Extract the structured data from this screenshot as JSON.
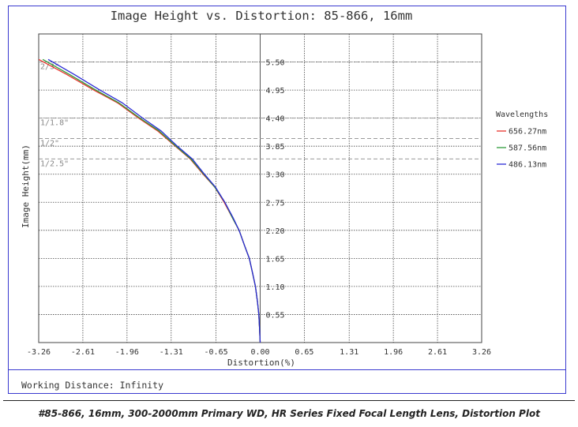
{
  "chart_data": {
    "type": "line",
    "title": "Image Height vs. Distortion: 85-866, 16mm",
    "xlabel": "Distortion(%)",
    "ylabel": "Image Height(mm)",
    "xlim": [
      -3.26,
      3.26
    ],
    "ylim": [
      0,
      6.05
    ],
    "x_ticks": [
      "-3.26",
      "-2.61",
      "-1.96",
      "-1.31",
      "-0.65",
      "0.00",
      "0.65",
      "1.31",
      "1.96",
      "2.61",
      "3.26"
    ],
    "y_ticks": [
      "0.55",
      "1.10",
      "1.65",
      "2.20",
      "2.75",
      "3.30",
      "3.85",
      "4.40",
      "4.95",
      "5.50"
    ],
    "grid": true,
    "legend_title": "Wavelengths",
    "legend_position": "right",
    "series": [
      {
        "name": "656.27nm",
        "color": "#e8332b",
        "points": [
          [
            0,
            0
          ],
          [
            -0.01,
            0.3
          ],
          [
            -0.02,
            0.55
          ],
          [
            -0.04,
            0.8
          ],
          [
            -0.07,
            1.1
          ],
          [
            -0.11,
            1.35
          ],
          [
            -0.16,
            1.65
          ],
          [
            -0.23,
            1.9
          ],
          [
            -0.31,
            2.2
          ],
          [
            -0.41,
            2.45
          ],
          [
            -0.53,
            2.75
          ],
          [
            -0.67,
            3.05
          ],
          [
            -0.84,
            3.3
          ],
          [
            -1.03,
            3.6
          ],
          [
            -1.25,
            3.85
          ],
          [
            -1.51,
            4.15
          ],
          [
            -1.79,
            4.4
          ],
          [
            -2.1,
            4.7
          ],
          [
            -2.45,
            4.95
          ],
          [
            -2.84,
            5.25
          ],
          [
            -3.26,
            5.55
          ]
        ]
      },
      {
        "name": "587.56nm",
        "color": "#2e9a3a",
        "points": [
          [
            0,
            0
          ],
          [
            -0.01,
            0.3
          ],
          [
            -0.02,
            0.55
          ],
          [
            -0.04,
            0.8
          ],
          [
            -0.07,
            1.1
          ],
          [
            -0.11,
            1.35
          ],
          [
            -0.16,
            1.65
          ],
          [
            -0.23,
            1.9
          ],
          [
            -0.31,
            2.2
          ],
          [
            -0.41,
            2.45
          ],
          [
            -0.52,
            2.75
          ],
          [
            -0.67,
            3.05
          ],
          [
            -0.83,
            3.3
          ],
          [
            -1.02,
            3.6
          ],
          [
            -1.24,
            3.85
          ],
          [
            -1.49,
            4.15
          ],
          [
            -1.77,
            4.4
          ],
          [
            -2.08,
            4.7
          ],
          [
            -2.42,
            4.95
          ],
          [
            -2.8,
            5.25
          ],
          [
            -3.2,
            5.55
          ]
        ]
      },
      {
        "name": "486.13nm",
        "color": "#2b2bd6",
        "points": [
          [
            0,
            0
          ],
          [
            -0.01,
            0.3
          ],
          [
            -0.02,
            0.55
          ],
          [
            -0.04,
            0.8
          ],
          [
            -0.07,
            1.1
          ],
          [
            -0.11,
            1.35
          ],
          [
            -0.16,
            1.65
          ],
          [
            -0.23,
            1.9
          ],
          [
            -0.31,
            2.2
          ],
          [
            -0.4,
            2.45
          ],
          [
            -0.52,
            2.75
          ],
          [
            -0.66,
            3.05
          ],
          [
            -0.82,
            3.3
          ],
          [
            -1.0,
            3.6
          ],
          [
            -1.22,
            3.85
          ],
          [
            -1.46,
            4.15
          ],
          [
            -1.73,
            4.4
          ],
          [
            -2.03,
            4.7
          ],
          [
            -2.36,
            4.95
          ],
          [
            -2.73,
            5.25
          ],
          [
            -3.12,
            5.55
          ]
        ]
      }
    ],
    "sensor_formats": [
      {
        "label": "2/3\"",
        "y": 5.5
      },
      {
        "label": "1/1.8\"",
        "y": 4.4
      },
      {
        "label": "1/2\"",
        "y": 4.0
      },
      {
        "label": "1/2.5\"",
        "y": 3.6
      }
    ]
  },
  "footer": {
    "working_distance": "Working Distance: Infinity"
  },
  "caption": "#85-866, 16mm, 300-2000mm Primary WD, HR Series Fixed Focal Length Lens, Distortion Plot"
}
